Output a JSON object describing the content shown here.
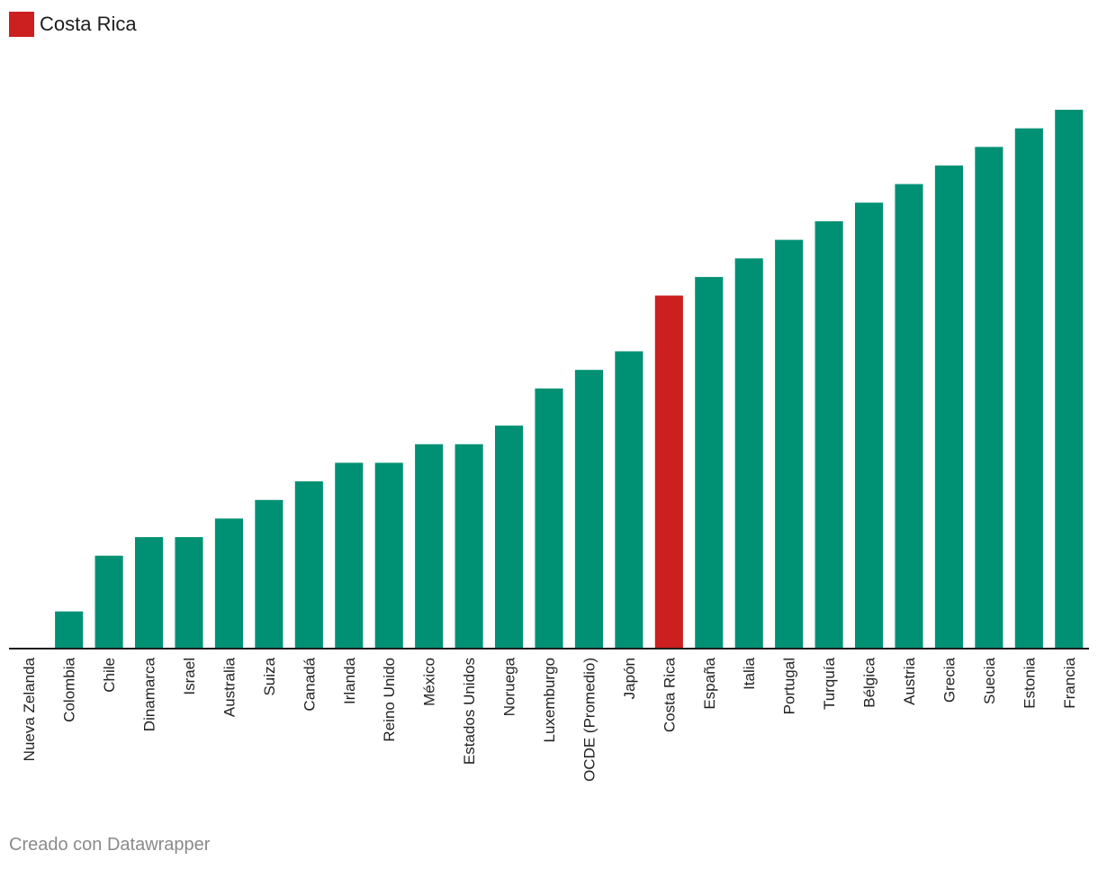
{
  "legend": {
    "label": "Costa Rica",
    "color": "#cc1f1f"
  },
  "footer": {
    "credit": "Creado con Datawrapper"
  },
  "chart_data": {
    "type": "bar",
    "title": "",
    "xlabel": "",
    "ylabel": "",
    "highlight": "Costa Rica",
    "bar_color": "#009174",
    "highlight_color": "#cc1f1f",
    "ylim": [
      0,
      29
    ],
    "grid": false,
    "categories": [
      "Nueva Zelanda",
      "Colombia",
      "Chile",
      "Dinamarca",
      "Israel",
      "Australia",
      "Suiza",
      "Canadá",
      "Irlanda",
      "Reino Unido",
      "México",
      "Estados Unidos",
      "Noruega",
      "Luxemburgo",
      "OCDE (Promedio)",
      "Japón",
      "Costa Rica",
      "España",
      "Italia",
      "Portugal",
      "Turquía",
      "Bélgica",
      "Austria",
      "Grecia",
      "Suecia",
      "Estonia",
      "Francia"
    ],
    "values": [
      0,
      2,
      5,
      6,
      6,
      7,
      8,
      9,
      10,
      10,
      11,
      11,
      12,
      14,
      15,
      16,
      19,
      20,
      21,
      22,
      23,
      24,
      25,
      26,
      27,
      28,
      29
    ]
  }
}
